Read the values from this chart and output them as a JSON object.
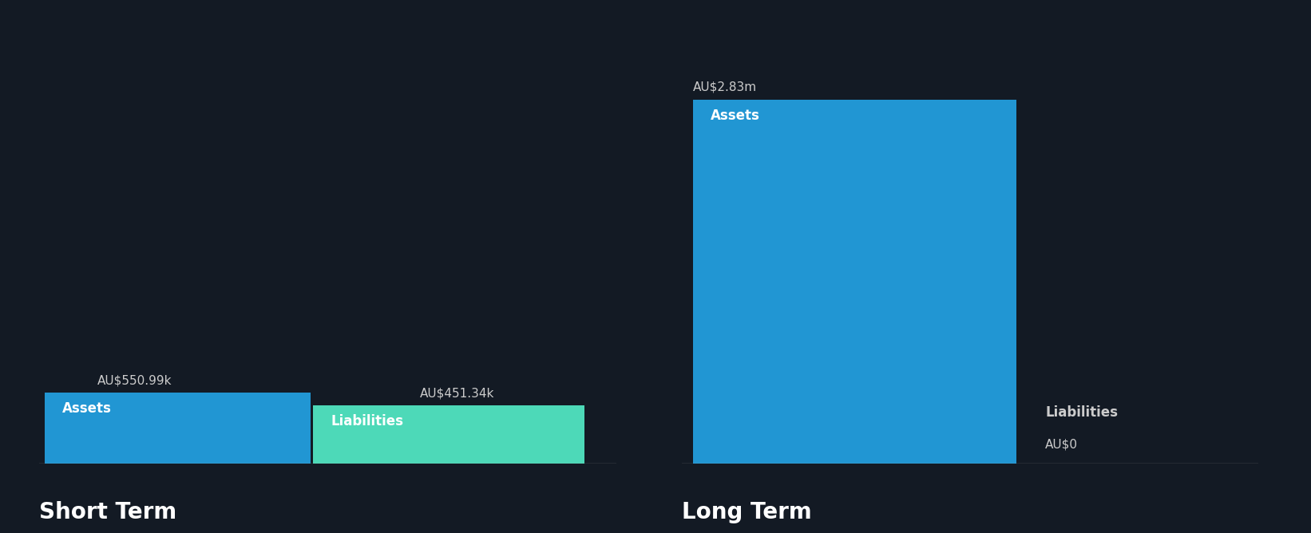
{
  "background_color": "#131a24",
  "short_term": {
    "assets_value": 550990,
    "assets_label": "AU$550.99k",
    "assets_color": "#2196d3",
    "liabilities_value": 451340,
    "liabilities_label": "AU$451.34k",
    "liabilities_color": "#4dd9b8",
    "assets_text": "Assets",
    "liabilities_text": "Liabilities",
    "section_label": "Short Term"
  },
  "long_term": {
    "assets_value": 2830000,
    "assets_label": "AU$2.83m",
    "assets_color": "#2196d3",
    "liabilities_value": 0,
    "liabilities_label": "AU$0",
    "liabilities_color": "#4dd9b8",
    "assets_text": "Assets",
    "liabilities_text": "Liabilities",
    "section_label": "Long Term"
  },
  "label_color": "#ffffff",
  "section_label_color": "#ffffff",
  "value_label_color": "#cccccc",
  "bar_label_fontsize": 11,
  "section_fontsize": 20,
  "inner_label_fontsize": 12,
  "baseline_color": "#aaaaaa",
  "baseline_alpha": 0.6
}
